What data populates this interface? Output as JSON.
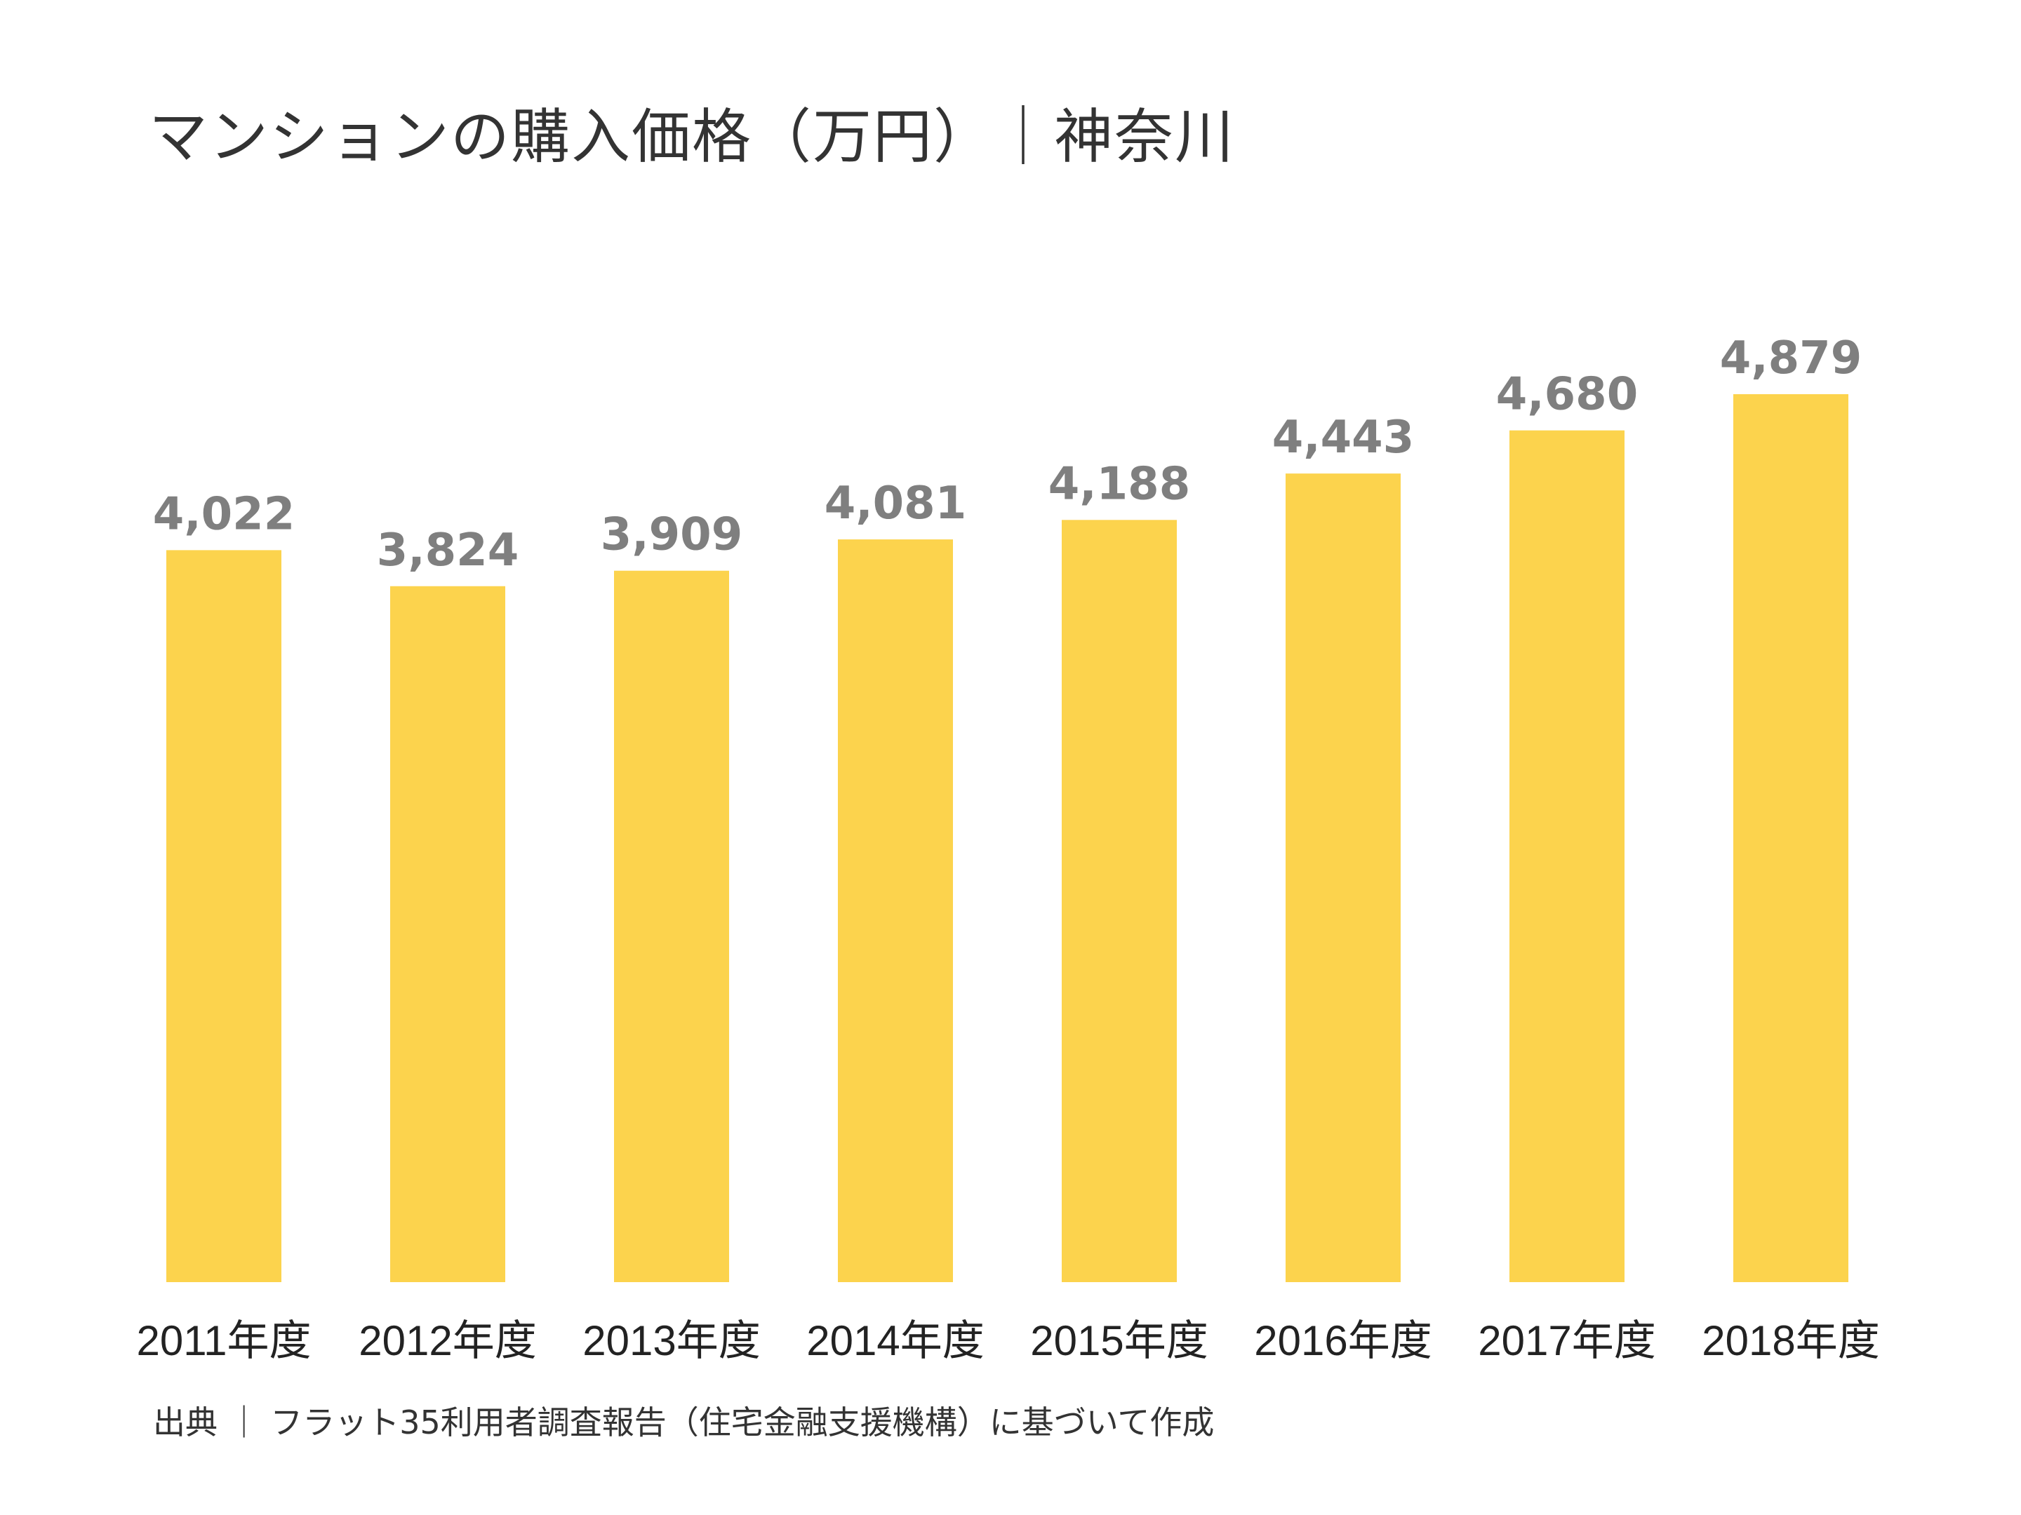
{
  "chart_data": {
    "type": "bar",
    "title": "マンションの購入価格（万円）｜神奈川",
    "categories": [
      "2011年度",
      "2012年度",
      "2013年度",
      "2014年度",
      "2015年度",
      "2016年度",
      "2017年度",
      "2018年度"
    ],
    "values": [
      4022,
      3824,
      3909,
      4081,
      4188,
      4443,
      4680,
      4879
    ],
    "value_labels": [
      "4,022",
      "3,824",
      "3,909",
      "4,081",
      "4,188",
      "4,443",
      "4,680",
      "4,879"
    ],
    "ylim": [
      0,
      4879
    ],
    "bar_color": "#FCD34D",
    "value_label_color": "#7F7F7F",
    "grid": false,
    "legend": "none",
    "source": "出典 ｜ フラット35利用者調査報告（住宅金融支援機構）に基づいて作成"
  }
}
